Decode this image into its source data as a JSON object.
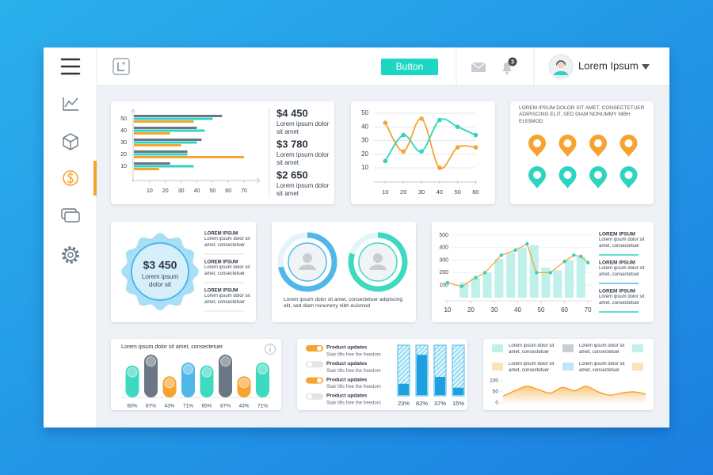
{
  "topbar": {
    "button": "Button",
    "notifications": "3",
    "user_name": "Lorem Ipsum"
  },
  "stats": [
    {
      "value": "$4 450",
      "text": "Lorem ipsum dolor sit amet"
    },
    {
      "value": "$3 780",
      "text": "Lorem ipsum dolor sit amet"
    },
    {
      "value": "$2 650",
      "text": "Lorem ipsum dolor sit amet"
    }
  ],
  "locations": {
    "text": "LOREM IPSUM DOLOR SIT AMET, CONSECTETUER ADIPISCING ELIT, SED DIAM NONUMMY NIBH EUISMOD",
    "pin_colors": [
      "#f7a330",
      "#f7a330",
      "#f7a330",
      "#f7a330",
      "#2dd4bf",
      "#2dd4bf",
      "#2dd4bf",
      "#2dd4bf"
    ]
  },
  "badge": {
    "value": "$3 450",
    "text": "Lorem ipsum dolor sit",
    "items": [
      {
        "title": "LOREM IPSUM",
        "text": "Lorem ipsum dolor sit amet, consectetuer"
      },
      {
        "title": "LOREM IPSUM",
        "text": "Lorem ipsum dolor sit amet, consectetuer"
      },
      {
        "title": "LOREM IPSUM",
        "text": "Lorem ipsum dolor sit amet, consectetuer"
      }
    ]
  },
  "toggles": [
    {
      "title": "Product updates",
      "text": "Stair lifts free the freedom",
      "on": true
    },
    {
      "title": "Product updates",
      "text": "Stair lifts free the freedom",
      "on": false
    },
    {
      "title": "Product updates",
      "text": "Stair lifts free the freedom",
      "on": true
    },
    {
      "title": "Product updates",
      "text": "Stair lifts free the freedom",
      "on": false
    }
  ],
  "chart_data": [
    {
      "type": "hbar",
      "categories": [
        "50",
        "40",
        "30",
        "20",
        "10"
      ],
      "series": [
        {
          "color": "#6b7785",
          "values": [
            56,
            40,
            43,
            34,
            23
          ]
        },
        {
          "color": "#2dd4bf",
          "values": [
            50,
            45,
            40,
            34,
            38
          ]
        },
        {
          "color": "#f7a330",
          "values": [
            38,
            23,
            30,
            70,
            16
          ]
        }
      ],
      "xlim": [
        0,
        75
      ],
      "xticks": [
        10,
        20,
        30,
        40,
        50,
        60,
        70
      ]
    },
    {
      "type": "line",
      "x": [
        10,
        20,
        30,
        40,
        50,
        60
      ],
      "series": [
        {
          "color": "#f7a330",
          "values": [
            43,
            22,
            46,
            10,
            25,
            25
          ]
        },
        {
          "color": "#2dd4bf",
          "values": [
            15,
            34,
            22,
            45,
            40,
            34
          ]
        }
      ],
      "xlim": [
        5,
        62
      ],
      "ylim": [
        5,
        55
      ],
      "xticks": [
        10,
        20,
        30,
        40,
        50,
        60
      ],
      "yticks": [
        10,
        20,
        30,
        40,
        50
      ],
      "grid": true
    },
    {
      "type": "ring",
      "values": [
        72,
        80
      ],
      "colors": [
        "#4fb8e8",
        "#3dd9c1"
      ],
      "text": "Lorem ipsum dolor sit amet, consectetuer adipiscing elit, sed diam nonummy nibh euismod"
    },
    {
      "type": "bar_line",
      "series": [
        {
          "type": "bar",
          "color": "#bff0ea",
          "x": [
            17,
            22,
            27,
            32,
            37,
            42,
            47,
            52,
            57,
            62,
            67
          ],
          "values": [
            120,
            160,
            200,
            310,
            360,
            400,
            420,
            240,
            220,
            300,
            330
          ]
        },
        {
          "type": "line",
          "color": "#f7a330",
          "marker_color": "#2dd4bf",
          "x": [
            10,
            16,
            22,
            26,
            33,
            39,
            44,
            48,
            54,
            60,
            64,
            67,
            70
          ],
          "values": [
            120,
            90,
            160,
            200,
            340,
            380,
            430,
            200,
            200,
            290,
            340,
            330,
            280
          ]
        }
      ],
      "xlim": [
        8,
        72
      ],
      "ylim": [
        0,
        500
      ],
      "xticks": [
        10,
        20,
        30,
        40,
        50,
        60,
        70
      ],
      "yticks": [
        100,
        200,
        300,
        400,
        500
      ],
      "grid": true,
      "legend": [
        {
          "name": "LOREM IPSUM",
          "text": "Lorem ipsum dolor sit amet, consectetuer",
          "color": "#2dd4bf"
        },
        {
          "name": "LOREM IPSUM",
          "text": "Lorem ipsum dolor sit amet, consectetuer",
          "color": "#4fb8e8"
        },
        {
          "name": "LOREM IPSUM",
          "text": "Lorem ipsum dolor sit amet, consectetuer",
          "color": "#2dd4bf"
        }
      ]
    },
    {
      "type": "capsule",
      "title": "Lorem ipsum dolor sit amet, consectetuer",
      "values": [
        65,
        87,
        43,
        71,
        65,
        87,
        43,
        71
      ],
      "value_labels": [
        "65%",
        "87%",
        "43%",
        "71%",
        "65%",
        "87%",
        "43%",
        "71%"
      ],
      "colors": [
        "#3dd9c1",
        "#6b7785",
        "#f7a330",
        "#4fb8e8",
        "#3dd9c1",
        "#6b7785",
        "#f7a330",
        "#3dd9c1"
      ],
      "ylim": [
        0,
        100
      ]
    },
    {
      "type": "progress",
      "values": [
        23,
        82,
        37,
        15
      ],
      "value_labels": [
        "23%",
        "82%",
        "37%",
        "15%"
      ],
      "color": "#1e9fe0",
      "ylim": [
        0,
        100
      ]
    },
    {
      "type": "area",
      "categories": [
        null,
        null,
        null,
        null,
        null,
        null,
        null,
        null,
        null,
        null,
        null,
        null,
        null
      ],
      "values": [
        30,
        55,
        75,
        60,
        45,
        70,
        55,
        75,
        50,
        35,
        45,
        50,
        40
      ],
      "color": "#f7a330",
      "ylim": [
        0,
        100
      ],
      "yticks": [
        0,
        50,
        100
      ],
      "legend": [
        {
          "name": "Lorem ipsum dolor sit amet, consectetuer",
          "color": "#bff0ea"
        },
        {
          "name": "Lorem ipsum dolor sit amet, consectetuer",
          "color": "#c9ced4"
        },
        {
          "name": "Lorem ipsum dolor sit amet, consectetuer",
          "color": "#fde0bd"
        },
        {
          "name": "Lorem ipsum dolor sit amet, consectetuer",
          "color": "#bfe6f7"
        }
      ]
    }
  ]
}
